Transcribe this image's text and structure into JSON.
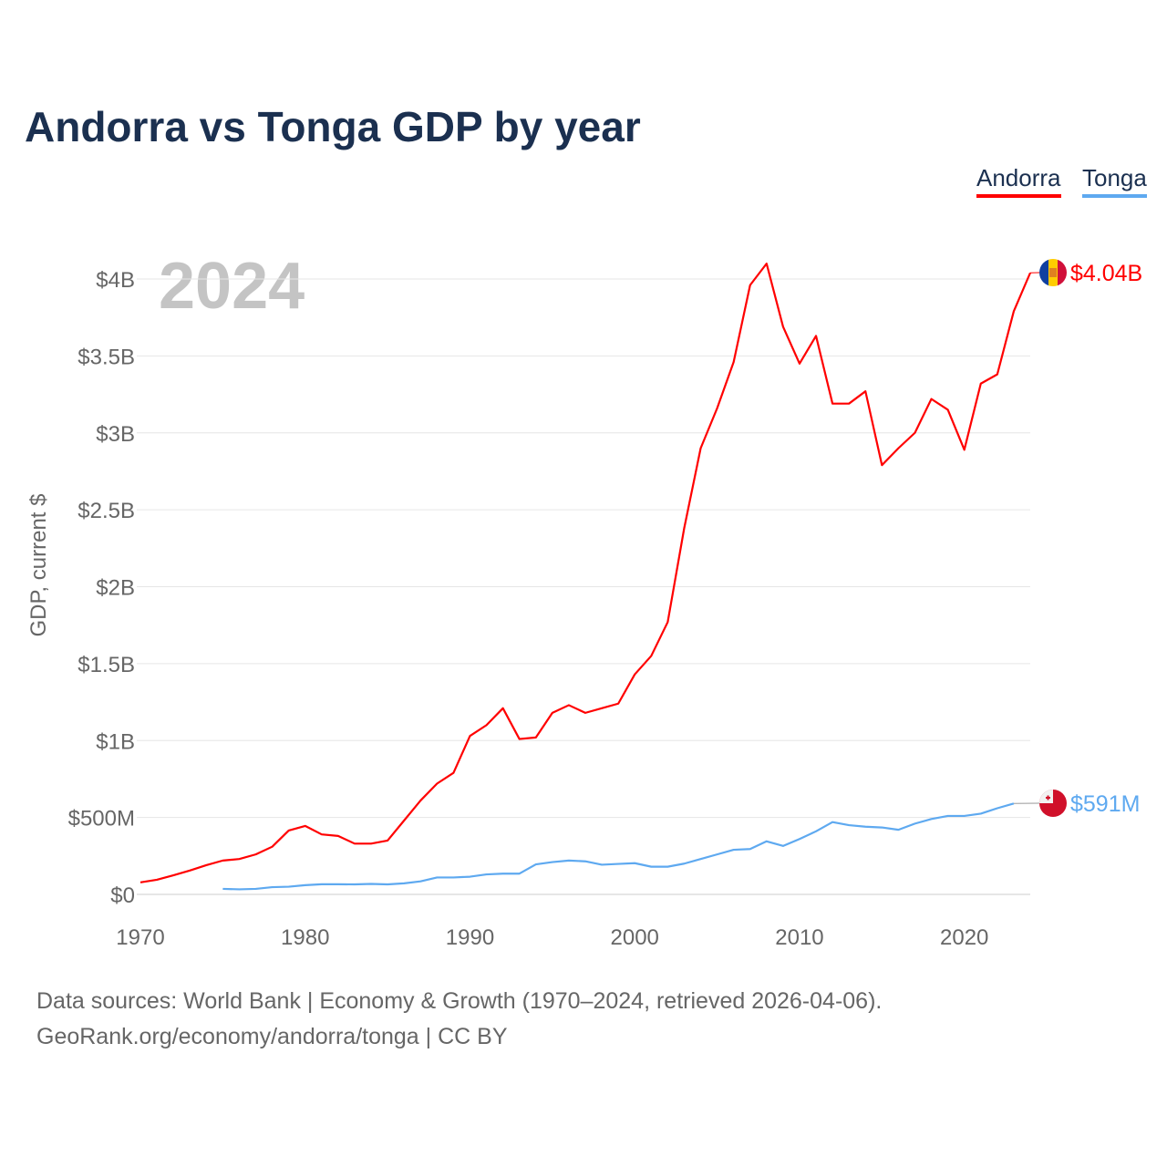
{
  "title": "Andorra vs Tonga GDP by year",
  "legend": [
    "Andorra",
    "Tonga"
  ],
  "footer": {
    "line1": "Data sources: World Bank | Economy & Growth (1970–2024, retrieved 2026-04-06).",
    "line2": "GeoRank.org/economy/andorra/tonga | CC BY"
  },
  "chart_data": {
    "type": "line",
    "title": "Andorra vs Tonga GDP by year",
    "year_label": "2024",
    "xlabel": "",
    "ylabel": "GDP, current $",
    "xlim": [
      1970,
      2024
    ],
    "ylim": [
      0,
      4.2
    ],
    "x_ticks": [
      1970,
      1980,
      1990,
      2000,
      2010,
      2020
    ],
    "x_tick_labels": [
      "1970",
      "1980",
      "1990",
      "2000",
      "2010",
      "2020"
    ],
    "y_ticks": [
      0,
      0.5,
      1,
      1.5,
      2,
      2.5,
      3,
      3.5,
      4
    ],
    "y_tick_labels": [
      "$0",
      "$500M",
      "$1B",
      "$1.5B",
      "$2B",
      "$2.5B",
      "$3B",
      "$3.5B",
      "$4B"
    ],
    "y_unit": "billion USD",
    "grid": true,
    "legend_position": "top-right",
    "series": [
      {
        "name": "Andorra",
        "color": "#ff0000",
        "end_label": "$4.04B",
        "flag": "andorra-flag",
        "x_start": 1970,
        "values": [
          0.078,
          0.095,
          0.124,
          0.155,
          0.19,
          0.22,
          0.23,
          0.26,
          0.31,
          0.415,
          0.445,
          0.39,
          0.38,
          0.33,
          0.33,
          0.35,
          0.48,
          0.61,
          0.72,
          0.79,
          1.03,
          1.1,
          1.21,
          1.01,
          1.02,
          1.18,
          1.23,
          1.18,
          1.21,
          1.24,
          1.43,
          1.55,
          1.77,
          2.38,
          2.9,
          3.16,
          3.46,
          3.96,
          4.1,
          3.69,
          3.45,
          3.63,
          3.19,
          3.19,
          3.27,
          2.79,
          2.9,
          3.0,
          3.22,
          3.15,
          2.89,
          3.32,
          3.38,
          3.79,
          4.04
        ]
      },
      {
        "name": "Tonga",
        "color": "#5ea9f0",
        "end_label": "$591M",
        "flag": "tonga-flag",
        "x_start": 1975,
        "values": [
          0.036,
          0.033,
          0.036,
          0.047,
          0.05,
          0.06,
          0.066,
          0.066,
          0.065,
          0.068,
          0.065,
          0.072,
          0.085,
          0.11,
          0.11,
          0.115,
          0.13,
          0.135,
          0.135,
          0.195,
          0.21,
          0.22,
          0.215,
          0.193,
          0.198,
          0.203,
          0.18,
          0.18,
          0.2,
          0.23,
          0.26,
          0.29,
          0.295,
          0.345,
          0.315,
          0.36,
          0.41,
          0.47,
          0.45,
          0.44,
          0.435,
          0.42,
          0.46,
          0.49,
          0.51,
          0.51,
          0.525,
          0.56,
          0.591
        ]
      }
    ]
  }
}
